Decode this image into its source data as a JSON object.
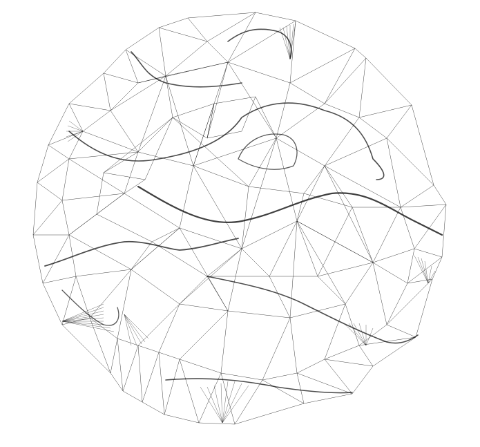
{
  "colors": {
    "background": "#ffffff",
    "stroke": "#000000"
  }
}
